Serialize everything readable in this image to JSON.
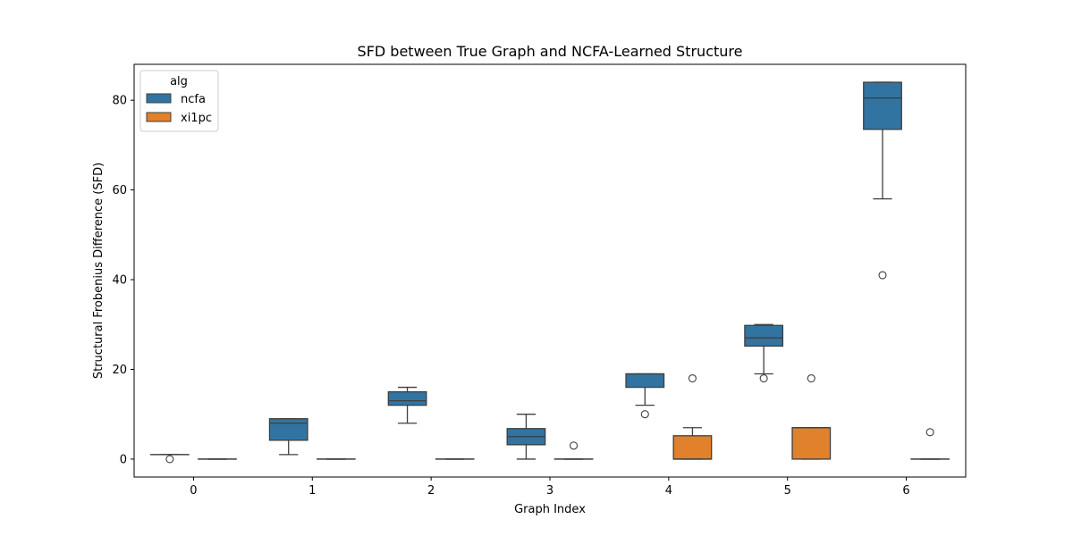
{
  "chart_data": {
    "type": "box",
    "title": "SFD between True Graph and NCFA-Learned Structure",
    "xlabel": "Graph Index",
    "ylabel": "Structural Frobenius Difference (SFD)",
    "categories": [
      "0",
      "1",
      "2",
      "3",
      "4",
      "5",
      "6"
    ],
    "ylim": [
      -4,
      88
    ],
    "yticks": [
      0,
      20,
      40,
      60,
      80
    ],
    "grid": false,
    "legend": {
      "title": "alg",
      "position": "top-left"
    },
    "colors": {
      "ncfa": "#3274a1",
      "xi1pc": "#e1812c",
      "edge": "#3f3f3f"
    },
    "series": [
      {
        "name": "ncfa",
        "boxes": [
          {
            "category": "0",
            "min": 1,
            "q1": 1,
            "median": 1,
            "q3": 1,
            "max": 1,
            "outliers": [
              0
            ]
          },
          {
            "category": "1",
            "min": 1,
            "q1": 4.2,
            "median": 8,
            "q3": 9,
            "max": 9,
            "outliers": []
          },
          {
            "category": "2",
            "min": 8,
            "q1": 12,
            "median": 13,
            "q3": 15,
            "max": 16,
            "outliers": []
          },
          {
            "category": "3",
            "min": 0,
            "q1": 3.2,
            "median": 5,
            "q3": 6.8,
            "max": 10,
            "outliers": []
          },
          {
            "category": "4",
            "min": 12,
            "q1": 16,
            "median": 19,
            "q3": 19,
            "max": 19,
            "outliers": [
              10
            ]
          },
          {
            "category": "5",
            "min": 19,
            "q1": 25.2,
            "median": 27,
            "q3": 29.8,
            "max": 30,
            "outliers": [
              18
            ]
          },
          {
            "category": "6",
            "min": 58,
            "q1": 73.5,
            "median": 80.5,
            "q3": 84,
            "max": 84,
            "outliers": [
              41
            ]
          }
        ]
      },
      {
        "name": "xi1pc",
        "boxes": [
          {
            "category": "0",
            "min": 0,
            "q1": 0,
            "median": 0,
            "q3": 0,
            "max": 0,
            "outliers": []
          },
          {
            "category": "1",
            "min": 0,
            "q1": 0,
            "median": 0,
            "q3": 0,
            "max": 0,
            "outliers": []
          },
          {
            "category": "2",
            "min": 0,
            "q1": 0,
            "median": 0,
            "q3": 0,
            "max": 0,
            "outliers": []
          },
          {
            "category": "3",
            "min": 0,
            "q1": 0,
            "median": 0,
            "q3": 0,
            "max": 0,
            "outliers": [
              3
            ]
          },
          {
            "category": "4",
            "min": 0,
            "q1": 0,
            "median": 0,
            "q3": 5.2,
            "max": 7,
            "outliers": [
              18
            ]
          },
          {
            "category": "5",
            "min": 0,
            "q1": 0,
            "median": 7,
            "q3": 7,
            "max": 7,
            "outliers": [
              18
            ]
          },
          {
            "category": "6",
            "min": 0,
            "q1": 0,
            "median": 0,
            "q3": 0,
            "max": 0,
            "outliers": [
              6
            ]
          }
        ]
      }
    ]
  }
}
